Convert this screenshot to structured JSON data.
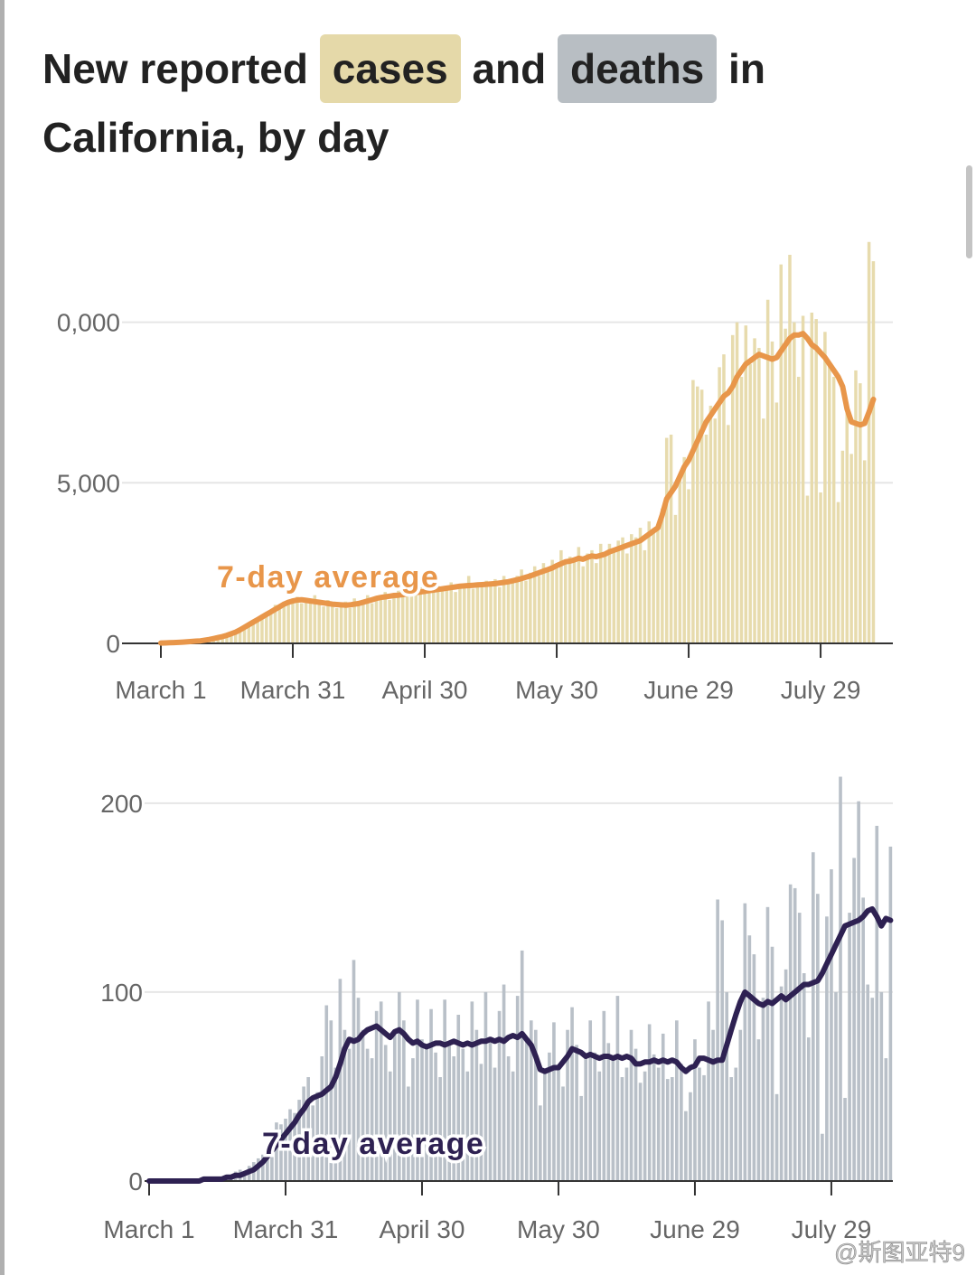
{
  "header": {
    "title": [
      "New reported",
      "and",
      "in",
      "California, by day"
    ]
  },
  "watermark": "@斯图亚特9",
  "chart_data": [
    {
      "type": "bar",
      "categories": [
        "March 1",
        null,
        null,
        null,
        null,
        null,
        null,
        null,
        null,
        null,
        null,
        null,
        null,
        null,
        null,
        null,
        null,
        null,
        null,
        null,
        null,
        null,
        null,
        null,
        null,
        null,
        null,
        null,
        null,
        null,
        "March 31",
        null,
        null,
        null,
        null,
        null,
        null,
        null,
        null,
        null,
        null,
        null,
        null,
        null,
        null,
        null,
        null,
        null,
        null,
        null,
        null,
        null,
        null,
        null,
        null,
        null,
        null,
        null,
        null,
        null,
        "April 30",
        null,
        null,
        null,
        null,
        null,
        null,
        null,
        null,
        null,
        null,
        null,
        null,
        null,
        null,
        null,
        null,
        null,
        null,
        null,
        null,
        null,
        null,
        null,
        null,
        null,
        null,
        null,
        null,
        null,
        "May 30",
        null,
        null,
        null,
        null,
        null,
        null,
        null,
        null,
        null,
        null,
        null,
        null,
        null,
        null,
        null,
        null,
        null,
        null,
        null,
        null,
        null,
        null,
        null,
        null,
        null,
        null,
        null,
        null,
        null,
        "June 29",
        null,
        null,
        null,
        null,
        null,
        null,
        null,
        null,
        null,
        null,
        null,
        null,
        null,
        null,
        null,
        null,
        null,
        null,
        null,
        null,
        null,
        null,
        null,
        null,
        null,
        null,
        null,
        null,
        null,
        "July 29",
        null,
        null,
        null,
        null,
        null,
        null,
        null,
        null,
        null,
        null,
        null,
        null
      ],
      "series": [
        {
          "name": "cases",
          "color": "#e7dbad",
          "values": [
            5,
            10,
            20,
            25,
            30,
            35,
            50,
            70,
            60,
            90,
            120,
            100,
            150,
            200,
            180,
            260,
            330,
            300,
            450,
            560,
            600,
            700,
            800,
            780,
            950,
            1000,
            1200,
            1150,
            1300,
            1250,
            1400,
            1450,
            1250,
            1380,
            1300,
            1500,
            1200,
            1150,
            1350,
            1280,
            1100,
            1250,
            1300,
            1100,
            1400,
            1200,
            1350,
            1500,
            1250,
            1450,
            1400,
            1600,
            1350,
            1500,
            1700,
            1450,
            1550,
            1600,
            1500,
            1750,
            1550,
            1700,
            1600,
            1800,
            1650,
            1750,
            1900,
            1600,
            1850,
            1750,
            2100,
            1700,
            1900,
            1800,
            1950,
            1850,
            2000,
            1750,
            2100,
            2000,
            1900,
            2100,
            2300,
            1950,
            2200,
            2400,
            2100,
            2500,
            2300,
            2600,
            2400,
            2900,
            2500,
            2700,
            2600,
            3000,
            2400,
            2800,
            2900,
            2500,
            3100,
            2700,
            3100,
            2900,
            3200,
            3300,
            2800,
            3400,
            3300,
            3600,
            2900,
            3800,
            3500,
            3700,
            4200,
            6400,
            6500,
            4000,
            5300,
            5800,
            4800,
            8200,
            8000,
            7900,
            6500,
            7400,
            7000,
            8600,
            9000,
            6800,
            9600,
            10000,
            8300,
            9900,
            8700,
            9500,
            9200,
            7000,
            10700,
            9400,
            7500,
            11800,
            9800,
            12100,
            10000,
            8300,
            10200,
            4600,
            10300,
            10100,
            4700,
            9700,
            8700,
            8300,
            4400,
            6000,
            7500,
            5900,
            8500,
            8100,
            5700,
            12500,
            11900
          ]
        },
        {
          "name": "7-day average",
          "type": "line",
          "color": "#e8964a",
          "values": [
            10,
            15,
            20,
            25,
            30,
            40,
            50,
            60,
            70,
            80,
            100,
            120,
            150,
            180,
            210,
            250,
            300,
            350,
            420,
            500,
            580,
            660,
            740,
            820,
            900,
            980,
            1060,
            1140,
            1220,
            1280,
            1320,
            1350,
            1360,
            1340,
            1320,
            1300,
            1280,
            1260,
            1240,
            1220,
            1210,
            1200,
            1190,
            1200,
            1220,
            1240,
            1280,
            1320,
            1360,
            1400,
            1430,
            1450,
            1470,
            1490,
            1500,
            1520,
            1540,
            1560,
            1580,
            1600,
            1620,
            1640,
            1660,
            1680,
            1700,
            1720,
            1740,
            1760,
            1780,
            1790,
            1800,
            1810,
            1820,
            1830,
            1840,
            1850,
            1860,
            1880,
            1900,
            1920,
            1950,
            1980,
            2020,
            2060,
            2100,
            2150,
            2200,
            2250,
            2300,
            2350,
            2420,
            2480,
            2540,
            2560,
            2600,
            2650,
            2620,
            2680,
            2720,
            2700,
            2740,
            2780,
            2850,
            2900,
            2950,
            3000,
            3050,
            3100,
            3150,
            3200,
            3300,
            3400,
            3500,
            3600,
            4000,
            4500,
            4700,
            4900,
            5200,
            5500,
            5700,
            6000,
            6300,
            6600,
            6900,
            7100,
            7300,
            7500,
            7700,
            7800,
            8000,
            8300,
            8500,
            8700,
            8800,
            8900,
            9000,
            8950,
            8900,
            8850,
            8900,
            9100,
            9300,
            9500,
            9600,
            9600,
            9650,
            9500,
            9300,
            9200,
            9050,
            8900,
            8700,
            8500,
            8300,
            8000,
            7300,
            6900,
            6850,
            6800,
            6850,
            7200,
            7600
          ]
        }
      ],
      "ylim": [
        0,
        13000
      ],
      "yticks": [
        0,
        {
          "value": 5000,
          "label": "5,000"
        },
        {
          "value": 10000,
          "label": "0,000"
        }
      ],
      "grid": true
    },
    {
      "type": "bar",
      "categories": [
        "March 1",
        null,
        null,
        null,
        null,
        null,
        null,
        null,
        null,
        null,
        null,
        null,
        null,
        null,
        null,
        null,
        null,
        null,
        null,
        null,
        null,
        null,
        null,
        null,
        null,
        null,
        null,
        null,
        null,
        null,
        "March 31",
        null,
        null,
        null,
        null,
        null,
        null,
        null,
        null,
        null,
        null,
        null,
        null,
        null,
        null,
        null,
        null,
        null,
        null,
        null,
        null,
        null,
        null,
        null,
        null,
        null,
        null,
        null,
        null,
        null,
        "April 30",
        null,
        null,
        null,
        null,
        null,
        null,
        null,
        null,
        null,
        null,
        null,
        null,
        null,
        null,
        null,
        null,
        null,
        null,
        null,
        null,
        null,
        null,
        null,
        null,
        null,
        null,
        null,
        null,
        null,
        "May 30",
        null,
        null,
        null,
        null,
        null,
        null,
        null,
        null,
        null,
        null,
        null,
        null,
        null,
        null,
        null,
        null,
        null,
        null,
        null,
        null,
        null,
        null,
        null,
        null,
        null,
        null,
        null,
        null,
        null,
        "June 29",
        null,
        null,
        null,
        null,
        null,
        null,
        null,
        null,
        null,
        null,
        null,
        null,
        null,
        null,
        null,
        null,
        null,
        null,
        null,
        null,
        null,
        null,
        null,
        null,
        null,
        null,
        null,
        null,
        null,
        "July 29",
        null,
        null,
        null,
        null,
        null,
        null,
        null,
        null,
        null,
        null,
        null,
        null,
        null
      ],
      "series": [
        {
          "name": "deaths",
          "color": "#b9c0c8",
          "values": [
            0,
            0,
            0,
            0,
            1,
            0,
            0,
            1,
            0,
            1,
            0,
            1,
            1,
            2,
            1,
            2,
            2,
            3,
            3,
            5,
            6,
            5,
            8,
            10,
            12,
            14,
            18,
            25,
            31,
            30,
            33,
            38,
            36,
            43,
            50,
            55,
            40,
            47,
            66,
            93,
            85,
            60,
            107,
            80,
            70,
            117,
            97,
            80,
            70,
            65,
            90,
            95,
            72,
            58,
            80,
            100,
            85,
            50,
            65,
            96,
            75,
            70,
            91,
            68,
            55,
            96,
            73,
            66,
            88,
            70,
            58,
            95,
            80,
            62,
            100,
            74,
            60,
            90,
            104,
            66,
            58,
            98,
            122,
            75,
            85,
            80,
            40,
            58,
            68,
            84,
            60,
            50,
            80,
            92,
            72,
            45,
            65,
            85,
            68,
            58,
            90,
            73,
            64,
            98,
            55,
            60,
            80,
            70,
            52,
            58,
            83,
            67,
            60,
            78,
            54,
            55,
            85,
            62,
            37,
            47,
            75,
            60,
            56,
            95,
            80,
            149,
            138,
            100,
            55,
            60,
            80,
            147,
            130,
            120,
            75,
            97,
            145,
            124,
            46,
            103,
            112,
            157,
            155,
            142,
            110,
            76,
            174,
            152,
            25,
            140,
            165,
            100,
            214,
            44,
            142,
            171,
            201,
            150,
            104,
            97,
            188,
            100,
            65,
            177
          ]
        },
        {
          "name": "7-day average",
          "type": "line",
          "color": "#2e2152",
          "values": [
            0,
            0,
            0,
            0,
            0,
            0,
            0,
            0,
            0,
            0,
            0,
            0,
            1,
            1,
            1,
            1,
            1,
            2,
            2,
            3,
            3,
            4,
            5,
            6,
            8,
            10,
            13,
            16,
            19,
            22,
            25,
            28,
            31,
            35,
            38,
            42,
            44,
            45,
            46,
            48,
            50,
            55,
            62,
            70,
            75,
            74,
            75,
            78,
            80,
            81,
            82,
            80,
            78,
            76,
            79,
            80,
            78,
            75,
            73,
            74,
            72,
            71,
            72,
            73,
            73,
            72,
            73,
            74,
            73,
            72,
            73,
            72,
            73,
            74,
            74,
            75,
            74,
            75,
            74,
            76,
            77,
            76,
            78,
            75,
            72,
            66,
            59,
            58,
            59,
            60,
            60,
            63,
            66,
            70,
            69,
            68,
            66,
            67,
            66,
            65,
            66,
            66,
            65,
            66,
            65,
            66,
            65,
            62,
            62,
            63,
            63,
            64,
            63,
            64,
            63,
            64,
            63,
            60,
            58,
            60,
            61,
            65,
            65,
            64,
            63,
            64,
            64,
            72,
            80,
            88,
            95,
            100,
            98,
            96,
            94,
            93,
            95,
            94,
            96,
            98,
            96,
            98,
            100,
            102,
            104,
            104,
            105,
            106,
            110,
            115,
            120,
            125,
            130,
            135,
            136,
            137,
            138,
            140,
            143,
            144,
            140,
            135,
            139,
            138
          ]
        }
      ],
      "ylim": [
        0,
        220
      ],
      "yticks": [
        0,
        100,
        200
      ],
      "grid": true
    }
  ]
}
